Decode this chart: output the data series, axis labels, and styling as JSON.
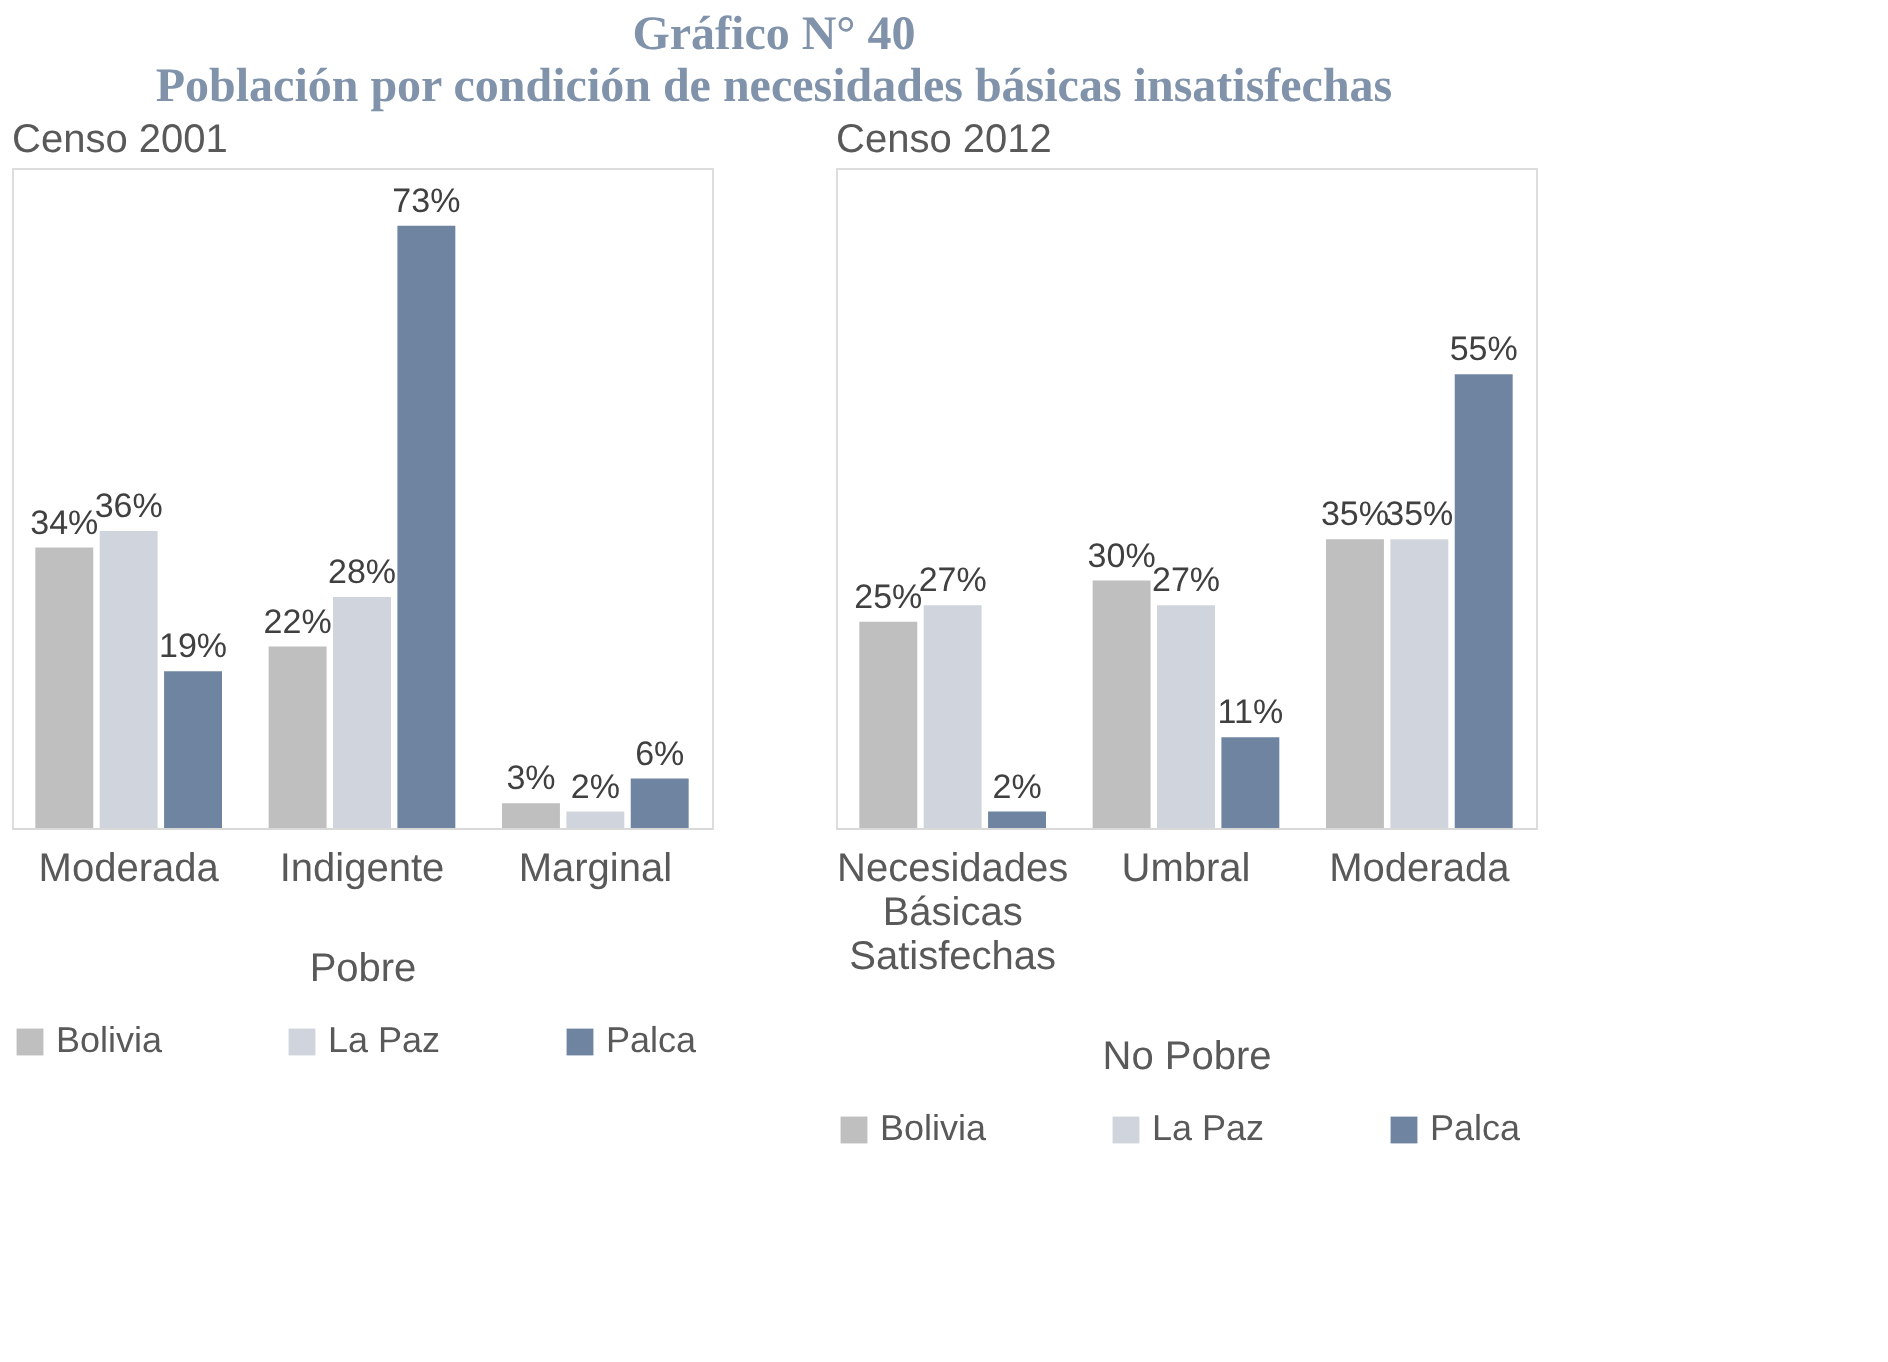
{
  "chart_data": [
    {
      "type": "bar",
      "title": "Gráfico N° 40\nPoblación por condición de necesidades básicas insatisfechas",
      "subtitle": "Censo 2001",
      "xlabel": "Pobre",
      "categories": [
        "Moderada",
        "Indigente",
        "Marginal"
      ],
      "ylim": [
        0,
        80
      ],
      "tick_labels": "x",
      "grid": false,
      "legend": "bottom",
      "series": [
        {
          "name": "Bolivia",
          "color": "#bfbfbf",
          "values": [
            34,
            22,
            3
          ],
          "value_labels": [
            "34%",
            "22%",
            "3%"
          ]
        },
        {
          "name": "La Paz",
          "color": "#d0d4dc",
          "values": [
            36,
            28,
            2
          ],
          "value_labels": [
            "36%",
            "28%",
            "2%"
          ]
        },
        {
          "name": "Palca",
          "color": "#6f84a0",
          "values": [
            19,
            73,
            6
          ],
          "value_labels": [
            "19%",
            "73%",
            "6%"
          ]
        }
      ]
    },
    {
      "type": "bar",
      "subtitle": "Censo 2012",
      "xlabel": "No Pobre",
      "categories": [
        "Necesidades Básicas Satisfechas",
        "Umbral",
        "Moderada"
      ],
      "ylim": [
        0,
        80
      ],
      "tick_labels": "x",
      "grid": false,
      "legend": "bottom",
      "series": [
        {
          "name": "Bolivia",
          "color": "#bfbfbf",
          "values": [
            25,
            30,
            35
          ],
          "value_labels": [
            "25%",
            "30%",
            "35%"
          ]
        },
        {
          "name": "La Paz",
          "color": "#d0d4dc",
          "values": [
            27,
            27,
            35
          ],
          "value_labels": [
            "27%",
            "27%",
            "35%"
          ]
        },
        {
          "name": "Palca",
          "color": "#6f84a0",
          "values": [
            2,
            11,
            55
          ],
          "value_labels": [
            "2%",
            "11%",
            "55%"
          ]
        }
      ]
    }
  ]
}
